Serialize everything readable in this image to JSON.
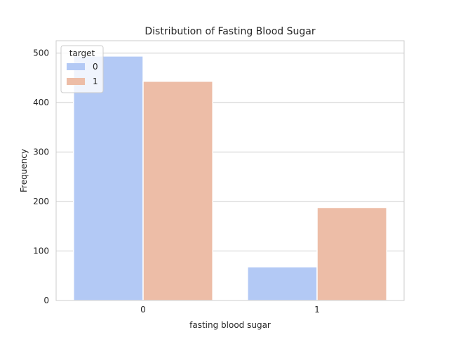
{
  "chart_data": {
    "type": "bar",
    "title": "Distribution of Fasting Blood Sugar",
    "xlabel": "fasting blood sugar",
    "ylabel": "Frequency",
    "categories": [
      "0",
      "1"
    ],
    "ylim": [
      0,
      525
    ],
    "yticks": [
      0,
      100,
      200,
      300,
      400,
      500
    ],
    "grid": true,
    "legend": {
      "title": "target",
      "placement": "top-left"
    },
    "series": [
      {
        "name": "0",
        "values": [
          494,
          68
        ],
        "color": "#b3c9f5"
      },
      {
        "name": "1",
        "values": [
          443,
          188
        ],
        "color": "#edbda7"
      }
    ]
  }
}
